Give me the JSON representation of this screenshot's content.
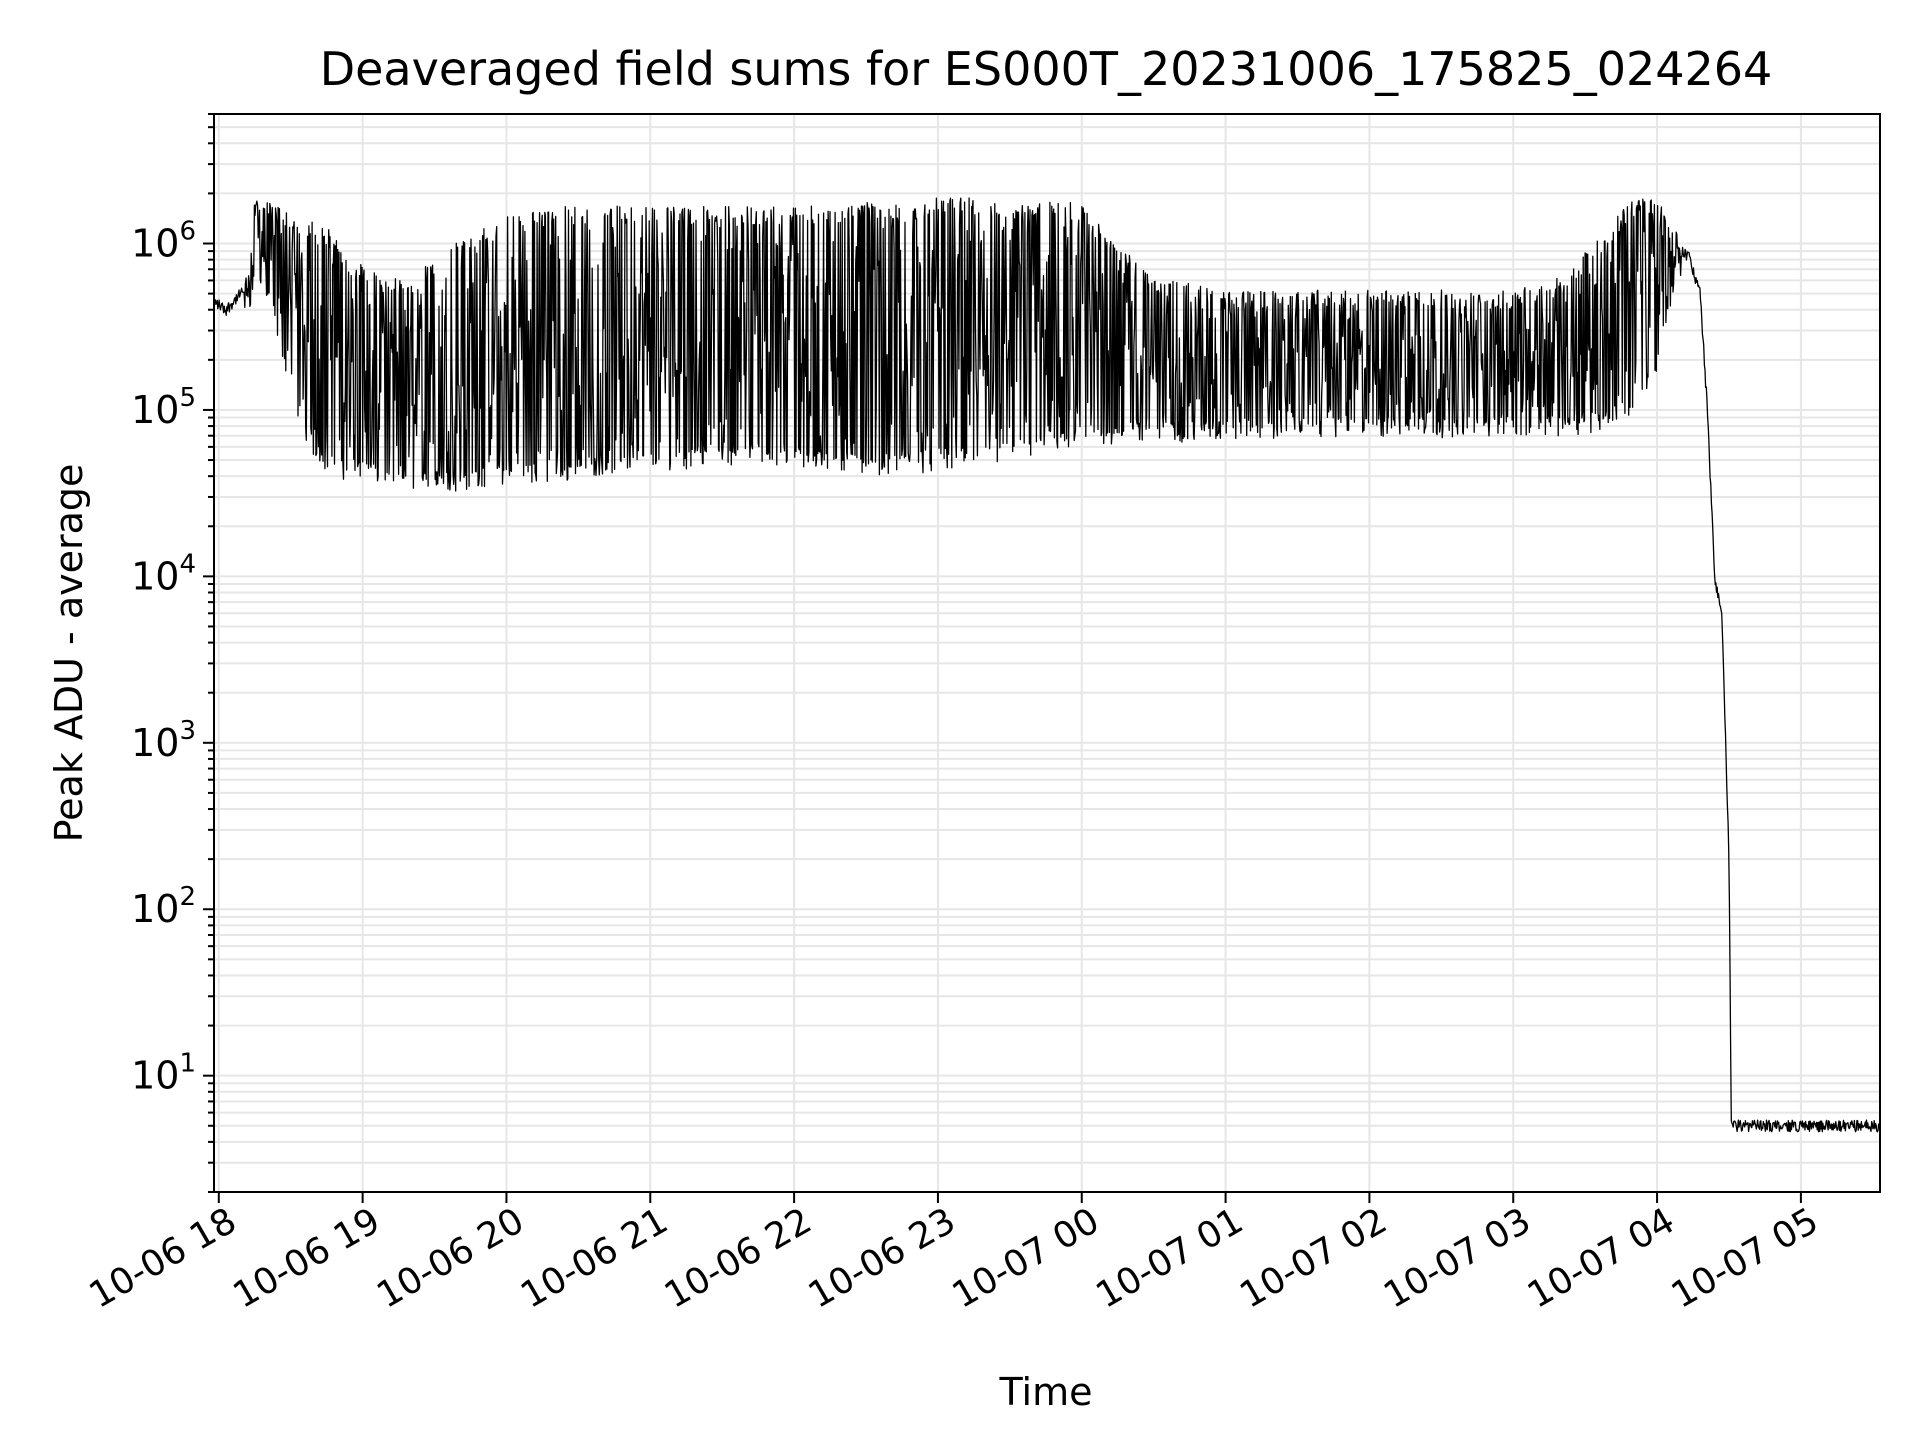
{
  "chart_data": {
    "type": "line",
    "title": "Deaveraged field sums for ES000T_20231006_175825_024264",
    "xlabel": "Time",
    "ylabel": "Peak ADU - average",
    "yscale": "log",
    "ylim": [
      2,
      6000000
    ],
    "xlim": [
      "2023-10-06T17:58:00",
      "2023-10-07T05:33:00"
    ],
    "grid": true,
    "line_color": "#000000",
    "grid_color": "#e6e6e6",
    "x_ticks": [
      {
        "t": "2023-10-06T18:00:00",
        "label": "10-06 18"
      },
      {
        "t": "2023-10-06T19:00:00",
        "label": "10-06 19"
      },
      {
        "t": "2023-10-06T20:00:00",
        "label": "10-06 20"
      },
      {
        "t": "2023-10-06T21:00:00",
        "label": "10-06 21"
      },
      {
        "t": "2023-10-06T22:00:00",
        "label": "10-06 22"
      },
      {
        "t": "2023-10-06T23:00:00",
        "label": "10-06 23"
      },
      {
        "t": "2023-10-07T00:00:00",
        "label": "10-07 00"
      },
      {
        "t": "2023-10-07T01:00:00",
        "label": "10-07 01"
      },
      {
        "t": "2023-10-07T02:00:00",
        "label": "10-07 02"
      },
      {
        "t": "2023-10-07T03:00:00",
        "label": "10-07 03"
      },
      {
        "t": "2023-10-07T04:00:00",
        "label": "10-07 04"
      },
      {
        "t": "2023-10-07T05:00:00",
        "label": "10-07 05"
      }
    ],
    "y_ticks": [
      {
        "v": 10,
        "base": "10",
        "exp": "1"
      },
      {
        "v": 100,
        "base": "10",
        "exp": "2"
      },
      {
        "v": 1000,
        "base": "10",
        "exp": "3"
      },
      {
        "v": 10000,
        "base": "10",
        "exp": "4"
      },
      {
        "v": 100000,
        "base": "10",
        "exp": "5"
      },
      {
        "v": 1000000,
        "base": "10",
        "exp": "6"
      }
    ],
    "series": [
      {
        "name": "",
        "x": [
          "2023-10-06T17:58:00",
          "2023-10-06T18:03:00",
          "2023-10-06T18:08:00",
          "2023-10-06T18:12:00",
          "2023-10-06T18:15:00",
          "2023-10-06T18:17:00",
          "2023-10-06T18:20:00",
          "2023-10-06T18:25:00",
          "2023-10-06T18:30:00",
          "2023-10-06T18:35:00",
          "2023-10-06T18:40:00",
          "2023-10-06T18:45:00",
          "2023-10-06T18:50:00",
          "2023-10-06T18:55:00",
          "2023-10-06T19:00:00",
          "2023-10-06T19:10:00",
          "2023-10-06T19:20:00",
          "2023-10-06T19:30:00",
          "2023-10-06T19:40:00",
          "2023-10-06T19:50:00",
          "2023-10-06T20:00:00",
          "2023-10-06T20:10:00",
          "2023-10-06T20:20:00",
          "2023-10-06T20:30:00",
          "2023-10-06T20:40:00",
          "2023-10-06T20:50:00",
          "2023-10-06T21:00:00",
          "2023-10-06T21:15:00",
          "2023-10-06T21:30:00",
          "2023-10-06T21:45:00",
          "2023-10-06T22:00:00",
          "2023-10-06T22:15:00",
          "2023-10-06T22:30:00",
          "2023-10-06T22:45:00",
          "2023-10-06T23:00:00",
          "2023-10-06T23:15:00",
          "2023-10-06T23:30:00",
          "2023-10-06T23:45:00",
          "2023-10-06T23:55:00",
          "2023-10-07T00:00:00",
          "2023-10-07T00:30:00",
          "2023-10-07T01:00:00",
          "2023-10-07T01:30:00",
          "2023-10-07T02:00:00",
          "2023-10-07T02:30:00",
          "2023-10-07T03:00:00",
          "2023-10-07T03:20:00",
          "2023-10-07T03:40:00",
          "2023-10-07T03:50:00",
          "2023-10-07T04:00:00",
          "2023-10-07T04:05:00",
          "2023-10-07T04:10:00",
          "2023-10-07T04:13:00",
          "2023-10-07T04:18:00",
          "2023-10-07T04:21:00",
          "2023-10-07T04:24:00",
          "2023-10-07T04:27:00",
          "2023-10-07T04:28:00",
          "2023-10-07T04:30:00",
          "2023-10-07T04:31:00",
          "2023-10-07T04:35:00",
          "2023-10-07T05:00:00",
          "2023-10-07T05:33:00"
        ],
        "y": [
          450000,
          400000,
          480000,
          550000,
          1100000,
          1300000,
          1200000,
          1000000,
          800000,
          600000,
          400000,
          300000,
          200000,
          150000,
          120000,
          100000,
          80000,
          70000,
          70000,
          75000,
          90000,
          100000,
          200000,
          300000,
          400000,
          500000,
          500000,
          450000,
          400000,
          350000,
          300000,
          250000,
          300000,
          400000,
          500000,
          500000,
          450000,
          400000,
          300000,
          200000,
          180000,
          150000,
          140000,
          160000,
          150000,
          150000,
          160000,
          200000,
          400000,
          700000,
          800000,
          900000,
          850000,
          500000,
          100000,
          10000,
          6000,
          2000,
          200,
          5,
          5,
          5,
          5
        ],
        "band_low": [
          330000,
          330000,
          380000,
          420000,
          600000,
          600000,
          500000,
          300000,
          150000,
          80000,
          60000,
          50000,
          45000,
          45000,
          45000,
          40000,
          38000,
          38000,
          38000,
          40000,
          42000,
          42000,
          42000,
          45000,
          48000,
          50000,
          50000,
          52000,
          55000,
          55000,
          52000,
          50000,
          48000,
          48000,
          50000,
          52000,
          58000,
          62000,
          65000,
          70000,
          75000,
          75000,
          80000,
          80000,
          80000,
          80000,
          80000,
          90000,
          110000,
          200000,
          400000,
          700000,
          750000,
          500000,
          100000,
          10000,
          6000,
          2000,
          200,
          5,
          4,
          4,
          4
        ],
        "band_high": [
          500000,
          500000,
          560000,
          700000,
          1700000,
          1900000,
          1700000,
          1600000,
          1500000,
          1400000,
          1300000,
          1200000,
          1000000,
          800000,
          700000,
          600000,
          600000,
          800000,
          1000000,
          1200000,
          1400000,
          1500000,
          1600000,
          1600000,
          1600000,
          1600000,
          1600000,
          1600000,
          1600000,
          1600000,
          1600000,
          1600000,
          1700000,
          1700000,
          1800000,
          1800000,
          1700000,
          1700000,
          1700000,
          1600000,
          600000,
          500000,
          500000,
          500000,
          500000,
          500000,
          600000,
          1200000,
          1800000,
          1800000,
          1300000,
          1100000,
          1000000,
          800000,
          120000,
          12000,
          7000,
          2500,
          300,
          5,
          5,
          5,
          5
        ]
      }
    ]
  }
}
